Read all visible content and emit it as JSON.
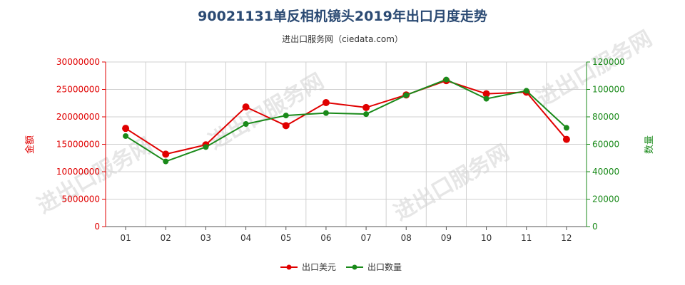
{
  "title": "90021131单反相机镜头2019年出口月度走势",
  "subtitle": "进出口服务网（ciedata.com）",
  "watermark": "进出口服务网",
  "chart_data": {
    "type": "line",
    "categories": [
      "01",
      "02",
      "03",
      "04",
      "05",
      "06",
      "07",
      "08",
      "09",
      "10",
      "11",
      "12"
    ],
    "left_axis": {
      "label": "金额",
      "ticks": [
        "0",
        "5000000",
        "10000000",
        "15000000",
        "20000000",
        "25000000",
        "30000000"
      ],
      "range": [
        0,
        30000000
      ],
      "color": "#e00000"
    },
    "right_axis": {
      "label": "数量",
      "ticks": [
        "0",
        "20000",
        "40000",
        "60000",
        "80000",
        "100000",
        "120000"
      ],
      "range": [
        0,
        120000
      ],
      "color": "#1a8a1a"
    },
    "series": [
      {
        "name": "出口美元",
        "axis": "left",
        "color": "#e00000",
        "values": [
          17900000,
          13200000,
          14900000,
          21800000,
          18400000,
          22600000,
          21700000,
          24000000,
          26600000,
          24200000,
          24500000,
          15900000
        ]
      },
      {
        "name": "出口数量",
        "axis": "right",
        "color": "#1a8a1a",
        "values": [
          66000,
          47500,
          58000,
          74800,
          81000,
          82800,
          82000,
          95800,
          107200,
          93200,
          99000,
          72000
        ]
      }
    ],
    "grid": true,
    "legend": "bottom-center"
  }
}
